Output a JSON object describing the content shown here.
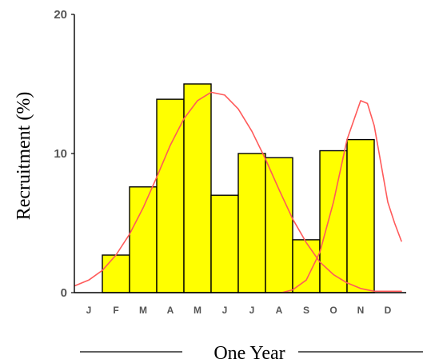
{
  "chart_data": {
    "type": "bar",
    "categories": [
      "J",
      "F",
      "M",
      "A",
      "M",
      "J",
      "J",
      "A",
      "S",
      "O",
      "N",
      "D"
    ],
    "values": [
      0,
      2.7,
      7.6,
      13.9,
      15.0,
      7.0,
      10.0,
      9.7,
      3.8,
      10.2,
      11.0,
      0
    ],
    "xlabel": "One Year",
    "ylabel": "Recruitment (%)",
    "ylim": [
      0,
      20
    ],
    "yticks": [
      "0",
      "10",
      "20"
    ],
    "bar_color": "#ffff00",
    "bar_edge_color": "#000000",
    "grid": false,
    "series": [
      {
        "type": "line",
        "color": "#ff5a5a",
        "x": [
          0.0,
          0.5,
          1.0,
          1.5,
          2.0,
          2.5,
          3.0,
          3.5,
          4.0,
          4.5,
          5.0,
          5.5,
          6.0,
          6.5,
          7.0,
          7.5,
          8.0,
          8.5,
          9.0,
          9.5,
          10.0,
          10.5,
          11.0,
          11.5,
          12.0
        ],
        "values": [
          0.5,
          0.9,
          1.6,
          2.7,
          4.2,
          6.1,
          8.3,
          10.6,
          12.5,
          13.8,
          14.4,
          14.2,
          13.2,
          11.6,
          9.6,
          7.4,
          5.3,
          3.6,
          2.2,
          1.3,
          0.7,
          0.3,
          0.1,
          0.1,
          0.1
        ]
      },
      {
        "type": "line",
        "color": "#ff5a5a",
        "x": [
          7.6,
          8.0,
          8.5,
          9.0,
          9.5,
          10.0,
          10.5,
          10.75,
          11.0,
          11.5,
          11.75,
          12.0
        ],
        "values": [
          0.0,
          0.2,
          0.9,
          2.9,
          6.5,
          11.0,
          13.8,
          13.6,
          12.0,
          6.5,
          5.0,
          3.7
        ]
      }
    ]
  }
}
